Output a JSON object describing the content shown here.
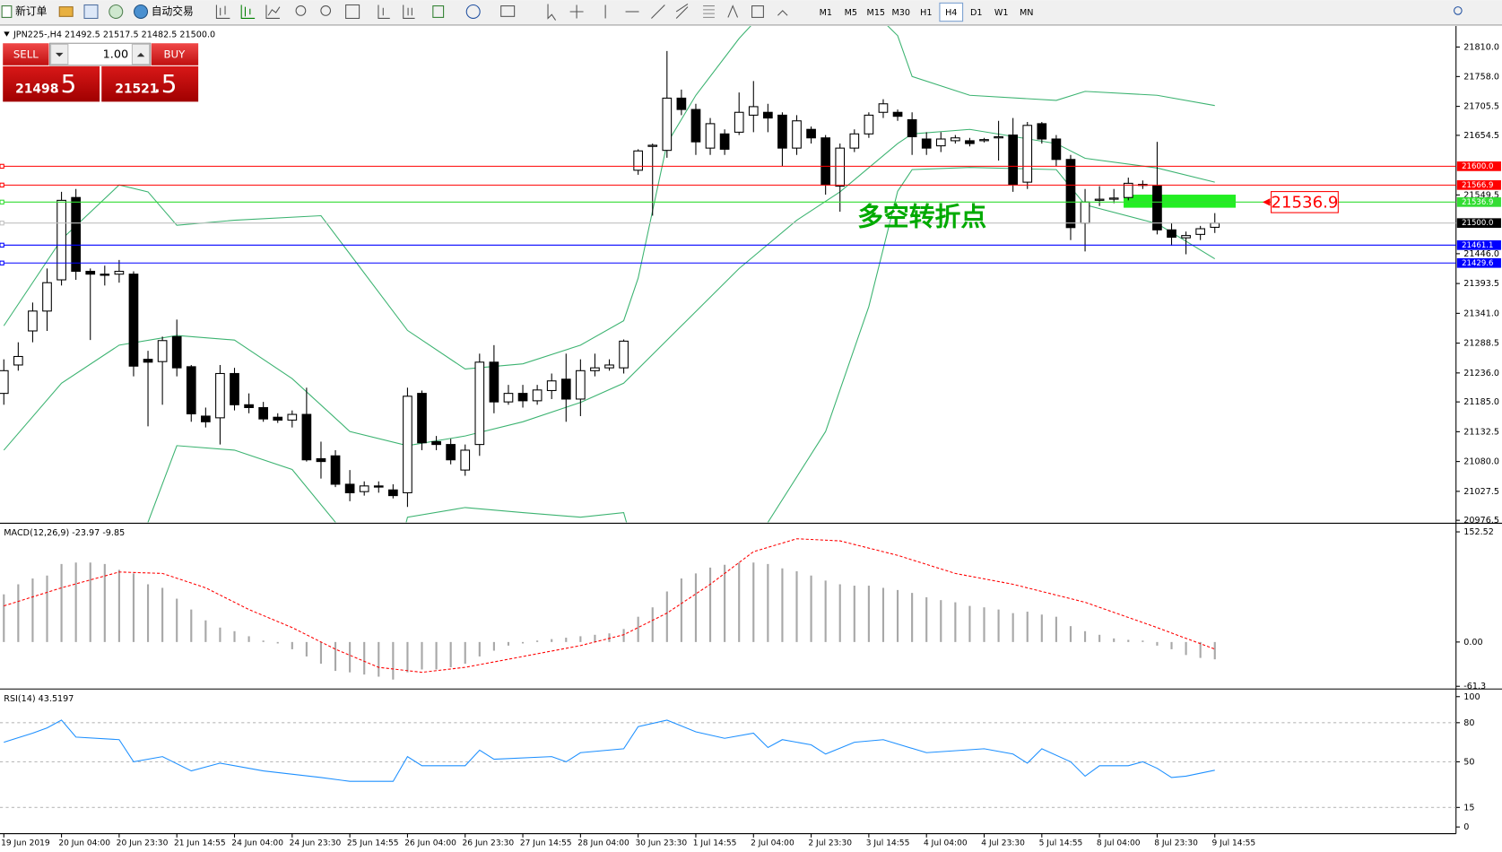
{
  "toolbar": {
    "new_order": "新订单",
    "auto_trading": "自动交易",
    "timeframes": [
      "M1",
      "M5",
      "M15",
      "M30",
      "H1",
      "H4",
      "D1",
      "W1",
      "MN"
    ],
    "active_timeframe": "H4"
  },
  "trade_panel": {
    "sell": "SELL",
    "buy": "BUY",
    "lot": "1.00",
    "sell_price": "21498",
    "sell_fraction": ".5",
    "buy_price": "21521",
    "buy_fraction": ".5"
  },
  "chart_data": [
    {
      "type": "candlestick",
      "title": "JPN225-,H4  21492.5 21517.5 21482.5 21500.0",
      "open": [
        21200,
        21250,
        21310,
        21345,
        21400,
        21545,
        21415,
        21410,
        21410,
        21410,
        21260,
        21256,
        21300,
        21247,
        21160,
        21157,
        21235,
        21180,
        21175,
        21158,
        21153,
        21163,
        21085,
        21090,
        21040,
        21027,
        21037,
        21030,
        21025,
        21200,
        21115,
        21110,
        21065,
        21110,
        21255,
        21185,
        21200,
        21187,
        21205,
        21225,
        21190,
        21240,
        21245,
        21245,
        21593,
        21635,
        21628,
        21720,
        21700,
        21632,
        21657,
        21660,
        21690,
        21695,
        21690,
        21632,
        21665,
        21650,
        21565,
        21632,
        21657,
        21695,
        21695,
        21682,
        21648,
        21636,
        21645,
        21645,
        21645,
        21650,
        21655,
        21572,
        21675,
        21648,
        21612,
        21500,
        21540,
        21542,
        21545,
        21568,
        21565,
        21488,
        21474,
        21480,
        21492.5
      ],
      "high": [
        21260,
        21290,
        21360,
        21420,
        21555,
        21560,
        21420,
        21425,
        21435,
        21415,
        21275,
        21300,
        21330,
        21250,
        21175,
        21250,
        21245,
        21200,
        21185,
        21165,
        21170,
        21210,
        21115,
        21100,
        21065,
        21045,
        21045,
        21040,
        21210,
        21205,
        21125,
        21120,
        21110,
        21270,
        21285,
        21215,
        21215,
        21215,
        21235,
        21270,
        21260,
        21270,
        21260,
        21295,
        21630,
        21640,
        21803,
        21735,
        21710,
        21685,
        21665,
        21730,
        21750,
        21710,
        21695,
        21690,
        21670,
        21655,
        21640,
        21665,
        21695,
        21718,
        21700,
        21695,
        21660,
        21660,
        21655,
        21650,
        21650,
        21680,
        21685,
        21678,
        21678,
        21655,
        21620,
        21560,
        21565,
        21560,
        21580,
        21575,
        21643,
        21500,
        21485,
        21495,
        21517.5
      ],
      "low": [
        21180,
        21240,
        21290,
        21310,
        21390,
        21400,
        21294,
        21390,
        21395,
        21230,
        21142,
        21180,
        21230,
        21150,
        21140,
        21110,
        21170,
        21165,
        21150,
        21148,
        21140,
        21080,
        21050,
        21035,
        21010,
        21020,
        21025,
        21015,
        21000,
        21100,
        21100,
        21075,
        21055,
        21090,
        21165,
        21180,
        21175,
        21180,
        21190,
        21150,
        21160,
        21230,
        21240,
        21235,
        21585,
        21513,
        21615,
        21690,
        21620,
        21620,
        21620,
        21655,
        21660,
        21660,
        21600,
        21620,
        21640,
        21550,
        21520,
        21625,
        21650,
        21685,
        21680,
        21620,
        21620,
        21625,
        21640,
        21635,
        21642,
        21610,
        21555,
        21560,
        21640,
        21600,
        21470,
        21450,
        21530,
        21535,
        21540,
        21560,
        21480,
        21460,
        21445,
        21470,
        21482.5
      ],
      "close": [
        21240,
        21265,
        21345,
        21395,
        21540,
        21415,
        21410,
        21408,
        21415,
        21248,
        21255,
        21293,
        21245,
        21164,
        21150,
        21235,
        21180,
        21175,
        21155,
        21153,
        21163,
        21083,
        21080,
        21040,
        21025,
        21037,
        21035,
        21020,
        21195,
        21113,
        21110,
        21083,
        21100,
        21255,
        21185,
        21200,
        21187,
        21206,
        21222,
        21190,
        21240,
        21245,
        21250,
        21292,
        21627,
        21637,
        21720,
        21700,
        21643,
        21675,
        21630,
        21695,
        21705,
        21685,
        21632,
        21680,
        21650,
        21567,
        21632,
        21657,
        21690,
        21710,
        21688,
        21652,
        21632,
        21648,
        21650,
        21640,
        21647,
        21652,
        21568,
        21672,
        21648,
        21612,
        21492,
        21537,
        21542,
        21544,
        21570,
        21568,
        21488,
        21475,
        21478,
        21490,
        21500
      ],
      "up_color": "#ffffff",
      "down_color": "#000000",
      "bands": {
        "color": "#3cb371",
        "series": [
          {
            "x": [
              0,
              4,
              8,
              10,
              12,
              16,
              22,
              28,
              32,
              36,
              40,
              43,
              44,
              46,
              48,
              51,
              53,
              60,
              62,
              63,
              67,
              73,
              75,
              80,
              84
            ],
            "values": [
              21319,
              21471,
              21567,
              21555,
              21496,
              21505,
              21513,
              21311,
              21243,
              21252,
              21285,
              21328,
              21403,
              21640,
              21725,
              21825,
              21880,
              21880,
              21830,
              21758,
              21725,
              21716,
              21732,
              21725,
              21707
            ]
          },
          {
            "x": [
              0,
              4,
              8,
              12,
              16,
              20,
              24,
              28,
              32,
              36,
              40,
              43,
              47,
              51,
              55,
              58,
              62,
              63,
              67,
              73,
              75,
              80,
              84
            ],
            "values": [
              21100,
              21218,
              21285,
              21302,
              21294,
              21226,
              21133,
              21108,
              21125,
              21150,
              21184,
              21218,
              21319,
              21420,
              21505,
              21555,
              21640,
              21657,
              21665,
              21640,
              21614,
              21597,
              21572
            ]
          },
          {
            "x": [
              0,
              9,
              10,
              12,
              16,
              20,
              23,
              24,
              27,
              28,
              32,
              36,
              40,
              43,
              44,
              50,
              53,
              57,
              60,
              62,
              63,
              67,
              73,
              75,
              80,
              84
            ],
            "values": [
              20800,
              20900,
              20973,
              21108,
              21100,
              21066,
              20973,
              20880,
              20880,
              20982,
              20999,
              20990,
              20982,
              20990,
              20900,
              20800,
              20973,
              21133,
              21353,
              21556,
              21594,
              21598,
              21594,
              21532,
              21499,
              21437
            ]
          }
        ]
      },
      "ylim": [
        20973,
        21847
      ],
      "yticks": [
        {
          "value": 21810,
          "label": "21810.0"
        },
        {
          "value": 21758,
          "label": "21758.0"
        },
        {
          "value": 21705.5,
          "label": "21705.5"
        },
        {
          "value": 21654.5,
          "label": "21654.5"
        },
        {
          "value": 21549.5,
          "label": "21549.5"
        },
        {
          "value": 21446,
          "label": "21446.0"
        },
        {
          "value": 21393.5,
          "label": "21393.5"
        },
        {
          "value": 21341,
          "label": "21341.0"
        },
        {
          "value": 21288.5,
          "label": "21288.5"
        },
        {
          "value": 21236,
          "label": "21236.0"
        },
        {
          "value": 21185,
          "label": "21185.0"
        },
        {
          "value": 21132.5,
          "label": "21132.5"
        },
        {
          "value": 21080,
          "label": "21080.0"
        },
        {
          "value": 21027.5,
          "label": "21027.5"
        },
        {
          "value": 20976.5,
          "label": "20976.5"
        }
      ],
      "hlines": [
        {
          "value": 21600,
          "label": "21600.0",
          "color": "#ff0000"
        },
        {
          "value": 21566.9,
          "label": "21566.9",
          "color": "#ff0000"
        },
        {
          "value": 21536.9,
          "label": "21536.9",
          "color": "#33dd33"
        },
        {
          "value": 21500,
          "label": "21500.0",
          "color": "#c0c0c0",
          "label_color": "#000000"
        },
        {
          "value": 21461.1,
          "label": "21461.1",
          "color": "#0000ff"
        },
        {
          "value": 21429.6,
          "label": "21429.6",
          "color": "#0000ff"
        }
      ],
      "zone": {
        "from": 21527,
        "to": 21550,
        "color": "#22ee22"
      },
      "annotation": {
        "text": "多空转折点",
        "color": "#00aa00"
      },
      "callout": {
        "value": 21536.9,
        "color": "#ff0000"
      }
    },
    {
      "type": "macd",
      "title": "MACD(12,26,9) -23.97 -9.85",
      "histogram": [
        66,
        80,
        88,
        92,
        108,
        110,
        110,
        108,
        100,
        95,
        80,
        75,
        60,
        45,
        30,
        20,
        15,
        8,
        2,
        -2,
        -10,
        -20,
        -30,
        -40,
        -42,
        -45,
        -48,
        -52,
        -42,
        -38,
        -38,
        -35,
        -30,
        -20,
        -12,
        -5,
        -2,
        2,
        4,
        6,
        8,
        10,
        12,
        18,
        35,
        48,
        70,
        88,
        95,
        103,
        107,
        110,
        110,
        108,
        102,
        98,
        92,
        85,
        80,
        78,
        78,
        75,
        72,
        68,
        62,
        58,
        55,
        50,
        48,
        45,
        40,
        42,
        38,
        35,
        22,
        15,
        10,
        5,
        3,
        2,
        -5,
        -10,
        -18,
        -22,
        -23.97
      ],
      "histogram_color": "#a8a8a8",
      "signal": {
        "x": [
          0,
          4,
          8,
          11,
          14,
          17,
          20,
          23,
          26,
          29,
          32,
          36,
          40,
          43,
          46,
          49,
          52,
          55,
          58,
          62,
          66,
          70,
          75,
          80,
          84
        ],
        "values": [
          50,
          75,
          97,
          95,
          75,
          45,
          20,
          -10,
          -35,
          -42,
          -35,
          -20,
          -5,
          10,
          40,
          80,
          125,
          143,
          140,
          120,
          95,
          80,
          55,
          20,
          -9.85
        ],
        "color": "#ff0000"
      },
      "ylim": [
        -63.7,
        161.8
      ],
      "yticks": [
        152.52,
        {
          "value": 0,
          "label": "0.00"
        },
        -61.3
      ]
    },
    {
      "type": "line",
      "title": "RSI(14) 43.5197",
      "x": [
        0,
        2,
        3,
        4,
        5,
        8,
        9,
        11,
        13,
        15,
        18,
        22,
        24,
        27,
        28,
        29,
        32,
        33,
        34,
        38,
        39,
        40,
        43,
        44,
        46,
        48,
        50,
        52,
        53,
        54,
        56,
        57,
        59,
        61,
        64,
        68,
        70,
        71,
        72,
        74,
        75,
        76,
        78,
        79,
        80,
        81,
        82,
        84
      ],
      "values": [
        65,
        72,
        76,
        82,
        69,
        67,
        50,
        54,
        43,
        49,
        43,
        38,
        35,
        35,
        54,
        47,
        47,
        59,
        52,
        54,
        50,
        57,
        60,
        77,
        82,
        73,
        68,
        72,
        61,
        67,
        63,
        56,
        65,
        67,
        57,
        60,
        56,
        49,
        60,
        50,
        39,
        47,
        47,
        50,
        45,
        38,
        39,
        43.5197
      ],
      "color": "#1e90ff",
      "ylim": [
        -5.1,
        104.4
      ],
      "yticks": [
        100,
        80,
        50,
        15,
        0
      ],
      "levels": [
        80,
        50,
        15
      ]
    }
  ],
  "time_axis": {
    "labels": [
      "19 Jun 2019",
      "20 Jun 04:00",
      "20 Jun 23:30",
      "21 Jun 14:55",
      "24 Jun 04:00",
      "24 Jun 23:30",
      "25 Jun 14:55",
      "26 Jun 04:00",
      "26 Jun 23:30",
      "27 Jun 14:55",
      "28 Jun 04:00",
      "30 Jun 23:30",
      "1 Jul 14:55",
      "2 Jul 04:00",
      "2 Jul 23:30",
      "3 Jul 14:55",
      "4 Jul 04:00",
      "4 Jul 23:30",
      "5 Jul 14:55",
      "8 Jul 04:00",
      "8 Jul 23:30",
      "9 Jul 14:55"
    ]
  }
}
